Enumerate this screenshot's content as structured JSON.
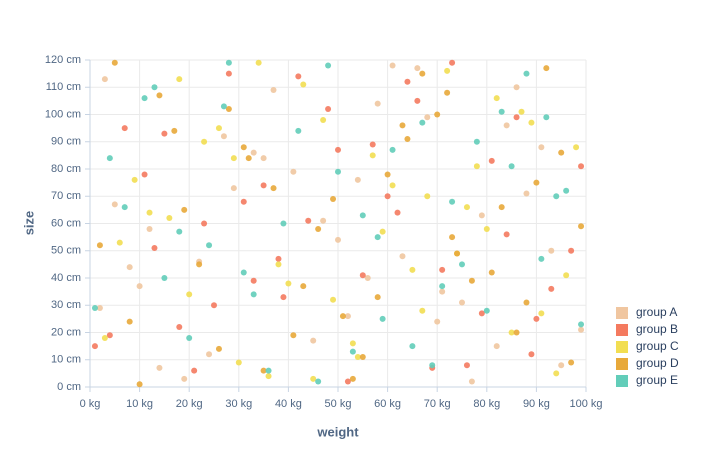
{
  "chart_data": {
    "type": "scatter",
    "x_label": "weight",
    "y_label": "size",
    "xlim": [
      0,
      100
    ],
    "ylim": [
      0,
      120
    ],
    "xticks": [
      {
        "value": 0,
        "label": "0 kg"
      },
      {
        "value": 10,
        "label": "10 kg"
      },
      {
        "value": 20,
        "label": "20 kg"
      },
      {
        "value": 30,
        "label": "30 kg"
      },
      {
        "value": 40,
        "label": "40 kg"
      },
      {
        "value": 50,
        "label": "50 kg"
      },
      {
        "value": 60,
        "label": "60 kg"
      },
      {
        "value": 70,
        "label": "70 kg"
      },
      {
        "value": 80,
        "label": "80 kg"
      },
      {
        "value": 90,
        "label": "90 kg"
      },
      {
        "value": 100,
        "label": "100 kg"
      }
    ],
    "yticks": [
      {
        "value": 0,
        "label": "0 cm"
      },
      {
        "value": 10,
        "label": "10 cm"
      },
      {
        "value": 20,
        "label": "20 cm"
      },
      {
        "value": 30,
        "label": "30 cm"
      },
      {
        "value": 40,
        "label": "40 cm"
      },
      {
        "value": 50,
        "label": "50 cm"
      },
      {
        "value": 60,
        "label": "60 cm"
      },
      {
        "value": 70,
        "label": "70 cm"
      },
      {
        "value": 80,
        "label": "80 cm"
      },
      {
        "value": 90,
        "label": "90 cm"
      },
      {
        "value": 100,
        "label": "100 cm"
      },
      {
        "value": 110,
        "label": "110 cm"
      },
      {
        "value": 120,
        "label": "120 cm"
      }
    ],
    "grid": true,
    "legend": "right",
    "series": [
      {
        "name": "group A",
        "color": "#f0c6a0",
        "x": [
          3,
          12,
          27,
          45,
          58,
          71,
          88,
          95,
          8,
          33,
          52,
          66,
          79,
          19,
          41,
          63,
          84,
          99,
          5,
          24,
          37,
          50,
          75,
          91,
          14,
          29,
          56,
          68,
          82,
          47,
          2,
          61,
          93,
          35,
          10,
          77,
          54,
          22,
          86,
          70
        ],
        "values": [
          113,
          58,
          92,
          17,
          104,
          35,
          71,
          8,
          44,
          86,
          26,
          117,
          63,
          3,
          79,
          48,
          96,
          21,
          67,
          12,
          109,
          54,
          31,
          88,
          7,
          73,
          40,
          99,
          15,
          61,
          29,
          118,
          50,
          84,
          37,
          2,
          76,
          46,
          110,
          24
        ]
      },
      {
        "name": "group B",
        "color": "#f47a5f",
        "x": [
          7,
          18,
          31,
          42,
          55,
          69,
          81,
          97,
          25,
          48,
          62,
          89,
          11,
          38,
          73,
          4,
          57,
          84,
          21,
          66,
          93,
          35,
          79,
          15,
          52,
          44,
          28,
          71,
          99,
          1,
          60,
          86,
          39,
          13,
          76,
          50,
          23,
          90,
          64,
          33
        ],
        "values": [
          95,
          22,
          68,
          114,
          41,
          7,
          83,
          50,
          30,
          102,
          64,
          12,
          78,
          47,
          119,
          19,
          89,
          56,
          6,
          105,
          36,
          74,
          27,
          93,
          2,
          61,
          115,
          43,
          81,
          15,
          70,
          99,
          33,
          51,
          8,
          87,
          60,
          25,
          112,
          39
        ]
      },
      {
        "name": "group C",
        "color": "#f2de52",
        "x": [
          9,
          20,
          36,
          47,
          59,
          72,
          85,
          98,
          16,
          30,
          43,
          65,
          78,
          91,
          6,
          26,
          53,
          68,
          82,
          40,
          57,
          94,
          12,
          34,
          49,
          74,
          87,
          3,
          61,
          23,
          45,
          80,
          96,
          18,
          67,
          29,
          54,
          76,
          89,
          38
        ],
        "values": [
          76,
          34,
          4,
          98,
          57,
          116,
          20,
          88,
          62,
          9,
          111,
          43,
          81,
          27,
          53,
          95,
          16,
          70,
          106,
          38,
          85,
          5,
          64,
          119,
          32,
          49,
          101,
          18,
          74,
          90,
          3,
          58,
          41,
          113,
          28,
          84,
          11,
          66,
          97,
          45
        ]
      },
      {
        "name": "group D",
        "color": "#e8a93a",
        "x": [
          2,
          14,
          26,
          37,
          51,
          64,
          77,
          92,
          10,
          32,
          46,
          58,
          70,
          83,
          97,
          5,
          22,
          41,
          60,
          73,
          88,
          17,
          35,
          49,
          67,
          81,
          95,
          8,
          28,
          55,
          74,
          90,
          43,
          63,
          19,
          86,
          31,
          99,
          53,
          72
        ],
        "values": [
          52,
          107,
          14,
          73,
          26,
          91,
          39,
          117,
          1,
          84,
          58,
          33,
          100,
          66,
          9,
          119,
          45,
          19,
          78,
          55,
          31,
          94,
          6,
          69,
          115,
          42,
          86,
          24,
          102,
          11,
          49,
          75,
          37,
          96,
          65,
          20,
          88,
          59,
          3,
          108
        ]
      },
      {
        "name": "group E",
        "color": "#62cdb9",
        "x": [
          4,
          15,
          28,
          39,
          53,
          67,
          80,
          94,
          11,
          24,
          46,
          61,
          75,
          88,
          99,
          7,
          33,
          50,
          69,
          83,
          20,
          42,
          58,
          71,
          96,
          13,
          36,
          55,
          78,
          91,
          1,
          27,
          65,
          85,
          48,
          18,
          59,
          73,
          31,
          92
        ],
        "values": [
          84,
          40,
          119,
          60,
          13,
          97,
          28,
          70,
          106,
          52,
          2,
          87,
          45,
          115,
          23,
          66,
          34,
          79,
          8,
          101,
          18,
          94,
          55,
          37,
          72,
          110,
          6,
          63,
          90,
          47,
          29,
          103,
          15,
          81,
          118,
          57,
          25,
          68,
          42,
          99
        ]
      }
    ]
  }
}
